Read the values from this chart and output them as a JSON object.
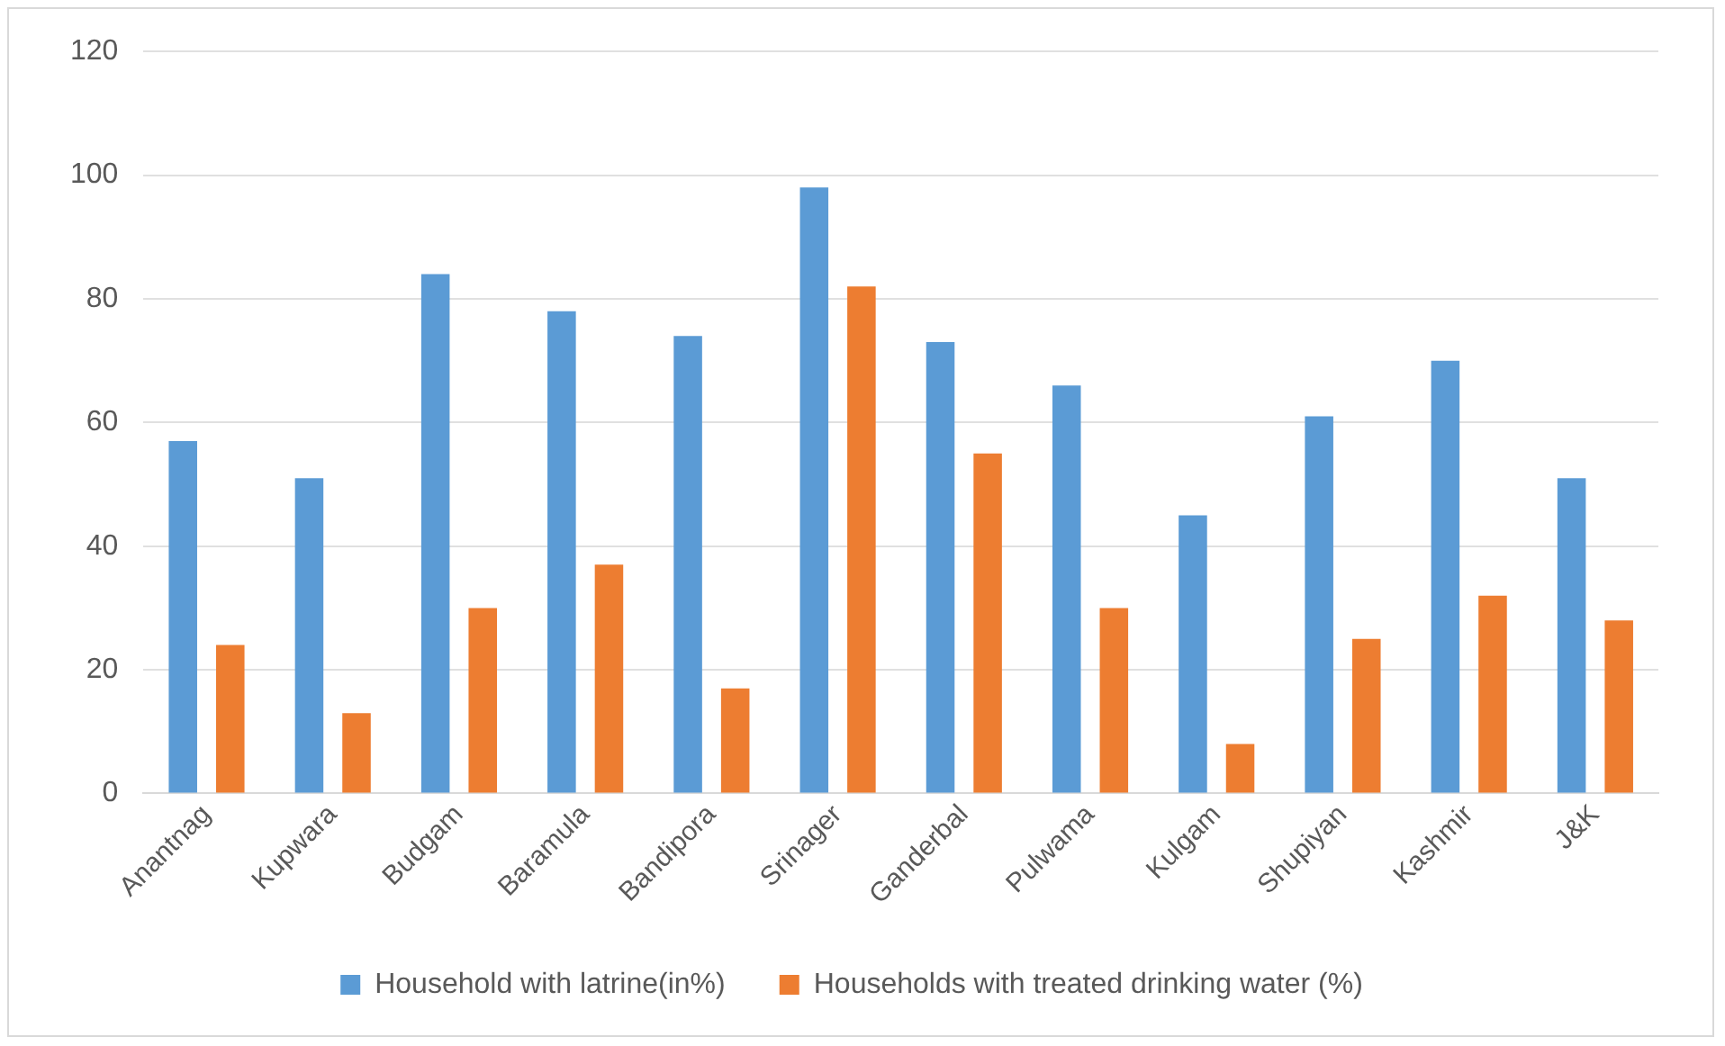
{
  "chart_data": {
    "type": "bar",
    "categories": [
      "Anantnag",
      "Kupwara",
      "Budgam",
      "Baramula",
      "Bandipora",
      "Srinager",
      "Ganderbal",
      "Pulwama",
      "Kulgam",
      "Shupiyan",
      "Kashmir",
      "J&K"
    ],
    "series": [
      {
        "name": "Household with latrine(in%)",
        "color": "#5b9bd5",
        "values": [
          57,
          51,
          84,
          78,
          74,
          98,
          73,
          66,
          45,
          61,
          70,
          51
        ]
      },
      {
        "name": "Households with treated drinking water (%)",
        "color": "#ed7d31",
        "values": [
          24,
          13,
          30,
          37,
          17,
          82,
          55,
          30,
          8,
          25,
          32,
          28
        ]
      }
    ],
    "ylim": [
      0,
      120
    ],
    "yticks": [
      0,
      20,
      40,
      60,
      80,
      100,
      120
    ],
    "grid": "y",
    "legend": "bottom"
  }
}
